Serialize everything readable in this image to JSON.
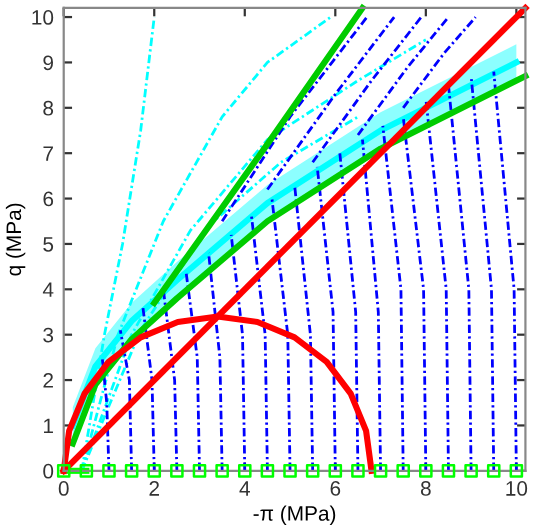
{
  "chart_data": {
    "type": "line",
    "xlabel": "-π (MPa)",
    "ylabel": "q (MPa)",
    "xlim": [
      0,
      10.2
    ],
    "ylim": [
      0,
      10.2
    ],
    "xticks": [
      0,
      2,
      4,
      6,
      8,
      10
    ],
    "yticks": [
      0,
      1,
      2,
      3,
      4,
      5,
      6,
      7,
      8,
      9,
      10
    ],
    "grid": false,
    "legend": false,
    "series": [
      {
        "color": "#00ffff",
        "x": [
          0.2,
          0.7,
          1.5,
          2.5,
          4.5,
          7,
          10
        ],
        "values": [
          1.0,
          2.3,
          3.3,
          4.2,
          5.9,
          7.5,
          9.0
        ],
        "lower": [
          0.6,
          1.9,
          2.9,
          3.8,
          5.5,
          7.1,
          8.6
        ],
        "upper": [
          1.4,
          2.7,
          3.7,
          4.6,
          6.3,
          7.9,
          9.4
        ],
        "line_style": "solid",
        "marker": "none"
      },
      {
        "color": "#00ffff",
        "x": [
          0.4,
          0.9,
          1.3,
          1.7,
          2.0
        ],
        "values": [
          0,
          3,
          5,
          7.5,
          10
        ],
        "line_style": "dashdot",
        "marker": "none"
      },
      {
        "color": "#00ffff",
        "x": [
          0.4,
          1.2,
          2.2,
          3.5,
          4.5,
          5.9
        ],
        "values": [
          0,
          3,
          5.5,
          7.8,
          9.0,
          10
        ],
        "line_style": "dashdot",
        "marker": "none"
      },
      {
        "color": "#00ffff",
        "x": [
          0.4,
          1.5,
          2.8,
          4.5,
          6.5,
          8.0
        ],
        "values": [
          0,
          3,
          5.3,
          7.3,
          8.6,
          9.5
        ],
        "line_style": "dashdot",
        "marker": "none"
      },
      {
        "color": "#00ffff",
        "x": [
          0.4,
          1.7,
          3.2,
          4.8,
          6.5
        ],
        "values": [
          0,
          3.1,
          5.4,
          6.8,
          7.8
        ],
        "line_style": "dashdot",
        "marker": "none"
      },
      {
        "color": "#0000ff",
        "x": [
          1.0,
          0.95,
          0.85
        ],
        "values": [
          0,
          1.5,
          2.5
        ],
        "line_style": "dashdot",
        "marker": "none"
      },
      {
        "color": "#0000ff",
        "x": [
          1.5,
          1.45,
          1.25
        ],
        "values": [
          0,
          2,
          3.1
        ],
        "line_style": "dashdot",
        "marker": "none"
      },
      {
        "color": "#0000ff",
        "x": [
          2.0,
          1.95,
          1.75
        ],
        "values": [
          0,
          2,
          3.6
        ],
        "line_style": "dashdot",
        "marker": "none"
      },
      {
        "color": "#0000ff",
        "x": [
          2.5,
          2.45,
          2.2
        ],
        "values": [
          0,
          2,
          4.0
        ],
        "line_style": "dashdot",
        "marker": "none"
      },
      {
        "color": "#0000ff",
        "x": [
          3.0,
          2.95,
          2.7
        ],
        "values": [
          0,
          2.5,
          4.4
        ],
        "line_style": "dashdot",
        "marker": "none"
      },
      {
        "color": "#0000ff",
        "x": [
          3.5,
          3.45,
          3.2
        ],
        "values": [
          0,
          2.5,
          4.8
        ],
        "line_style": "dashdot",
        "marker": "none"
      },
      {
        "color": "#0000ff",
        "x": [
          4.0,
          3.95,
          3.7
        ],
        "values": [
          0,
          3,
          5.2
        ],
        "line_style": "dashdot",
        "marker": "none"
      },
      {
        "color": "#0000ff",
        "x": [
          4.5,
          4.45,
          4.15
        ],
        "values": [
          0,
          3,
          5.6
        ],
        "line_style": "dashdot",
        "marker": "none"
      },
      {
        "color": "#0000ff",
        "x": [
          5.0,
          4.95,
          4.6
        ],
        "values": [
          0,
          3,
          6.0
        ],
        "line_style": "dashdot",
        "marker": "none"
      },
      {
        "color": "#0000ff",
        "x": [
          5.5,
          5.45,
          5.1
        ],
        "values": [
          0,
          3,
          6.3
        ],
        "line_style": "dashdot",
        "marker": "none"
      },
      {
        "color": "#0000ff",
        "x": [
          6.0,
          5.95,
          5.6
        ],
        "values": [
          0,
          3.5,
          6.7
        ],
        "line_style": "dashdot",
        "marker": "none"
      },
      {
        "color": "#0000ff",
        "x": [
          6.5,
          6.45,
          6.1
        ],
        "values": [
          0,
          3.5,
          7.0
        ],
        "line_style": "dashdot",
        "marker": "none"
      },
      {
        "color": "#0000ff",
        "x": [
          7.0,
          6.95,
          6.6
        ],
        "values": [
          0,
          3.5,
          7.3
        ],
        "line_style": "dashdot",
        "marker": "none"
      },
      {
        "color": "#0000ff",
        "x": [
          7.5,
          7.45,
          7.05
        ],
        "values": [
          0,
          4,
          7.6
        ],
        "line_style": "dashdot",
        "marker": "none"
      },
      {
        "color": "#0000ff",
        "x": [
          8.0,
          7.95,
          7.5
        ],
        "values": [
          0,
          4,
          7.8
        ],
        "line_style": "dashdot",
        "marker": "none"
      },
      {
        "color": "#0000ff",
        "x": [
          8.5,
          8.45,
          8.0
        ],
        "values": [
          0,
          4,
          8.2
        ],
        "line_style": "dashdot",
        "marker": "none"
      },
      {
        "color": "#0000ff",
        "x": [
          9.0,
          8.95,
          8.5
        ],
        "values": [
          0,
          4,
          8.5
        ],
        "line_style": "dashdot",
        "marker": "none"
      },
      {
        "color": "#0000ff",
        "x": [
          9.5,
          9.45,
          9.0
        ],
        "values": [
          0,
          4,
          8.7
        ],
        "line_style": "dashdot",
        "marker": "none"
      },
      {
        "color": "#0000ff",
        "x": [
          10.0,
          9.95,
          9.5
        ],
        "values": [
          0,
          4,
          8.8
        ],
        "line_style": "dashdot",
        "marker": "none"
      },
      {
        "color": "#0000ff",
        "x": [
          3.5,
          5.0,
          6.7
        ],
        "values": [
          5.5,
          7.8,
          10
        ],
        "line_style": "dashdot",
        "marker": "none"
      },
      {
        "color": "#0000ff",
        "x": [
          4.5,
          6.0,
          7.3
        ],
        "values": [
          6.2,
          8.3,
          10
        ],
        "line_style": "dashdot",
        "marker": "none"
      },
      {
        "color": "#0000ff",
        "x": [
          5.5,
          6.8,
          7.9
        ],
        "values": [
          6.8,
          8.6,
          10
        ],
        "line_style": "dashdot",
        "marker": "none"
      },
      {
        "color": "#0000ff",
        "x": [
          6.5,
          7.6,
          8.5
        ],
        "values": [
          7.4,
          8.9,
          10
        ],
        "line_style": "dashdot",
        "marker": "none"
      },
      {
        "color": "#0000ff",
        "x": [
          7.5,
          8.4,
          9.1
        ],
        "values": [
          8.0,
          9.2,
          10
        ],
        "line_style": "dashdot",
        "marker": "none"
      },
      {
        "color": "#00cc00",
        "x": [
          2.0,
          4.5,
          6.6
        ],
        "values": [
          3.7,
          7.2,
          10.2
        ],
        "line_style": "solid",
        "marker": "none"
      },
      {
        "color": "#00cc00",
        "x": [
          0.2,
          0.7,
          1.5,
          2.5,
          4.5,
          7,
          10.2
        ],
        "values": [
          0.6,
          1.9,
          2.9,
          3.8,
          5.5,
          7.1,
          8.7
        ],
        "line_style": "solid",
        "marker": "none"
      },
      {
        "color": "#00ff00",
        "x": [
          0,
          0.5
        ],
        "values": [
          0,
          0
        ],
        "line_style": "solid",
        "marker": "none"
      },
      {
        "type": "scatter",
        "color": "#00ff00",
        "x": [
          0,
          0.5,
          1,
          1.5,
          2,
          2.5,
          3,
          3.5,
          4,
          4.5,
          5,
          5.5,
          6,
          6.5,
          7,
          7.5,
          8,
          8.5,
          9,
          9.5,
          10
        ],
        "values": [
          0,
          0,
          0,
          0,
          0,
          0,
          0,
          0,
          0,
          0,
          0,
          0,
          0,
          0,
          0,
          0,
          0,
          0,
          0,
          0,
          0
        ],
        "marker": "square"
      },
      {
        "color": "#ff0000",
        "x": [
          0,
          10.2
        ],
        "values": [
          0,
          10.2
        ],
        "line_style": "solid",
        "marker": "none"
      },
      {
        "color": "#ff0000",
        "x": [
          0,
          0.12,
          0.46,
          0.99,
          1.7,
          2.52,
          3.4,
          4.28,
          5.1,
          5.81,
          6.34,
          6.68,
          6.8
        ],
        "values": [
          0,
          0.88,
          1.7,
          2.4,
          2.94,
          3.28,
          3.4,
          3.28,
          2.94,
          2.4,
          1.7,
          0.88,
          0
        ],
        "line_style": "solid",
        "marker": "none"
      }
    ]
  }
}
